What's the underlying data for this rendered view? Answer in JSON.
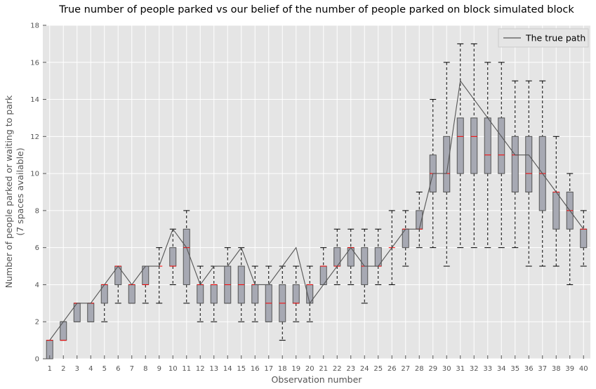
{
  "chart_data": {
    "type": "boxplot",
    "title": "True number of people parked vs our belief of the number of people parked on block simulated block",
    "xlabel": "Observation number",
    "ylabel_line1": "Number of people parked or waiting to park",
    "ylabel_line2": "(7 spaces available)",
    "ylim": [
      0,
      18
    ],
    "yticks": [
      0,
      2,
      4,
      6,
      8,
      10,
      12,
      14,
      16,
      18
    ],
    "categories": [
      "1",
      "2",
      "3",
      "4",
      "5",
      "6",
      "7",
      "8",
      "9",
      "10",
      "11",
      "12",
      "13",
      "14",
      "15",
      "16",
      "17",
      "18",
      "19",
      "20",
      "21",
      "22",
      "23",
      "24",
      "25",
      "26",
      "27",
      "28",
      "29",
      "30",
      "31",
      "32",
      "33",
      "34",
      "35",
      "36",
      "37",
      "38",
      "39",
      "40"
    ],
    "boxes": [
      {
        "whislo": 0,
        "q1": 0,
        "med": 1,
        "q3": 1,
        "whishi": 1
      },
      {
        "whislo": 1,
        "q1": 1,
        "med": 1,
        "q3": 2,
        "whishi": 2
      },
      {
        "whislo": 2,
        "q1": 2,
        "med": 3,
        "q3": 3,
        "whishi": 3
      },
      {
        "whislo": 2,
        "q1": 2,
        "med": 3,
        "q3": 3,
        "whishi": 3
      },
      {
        "whislo": 2,
        "q1": 3,
        "med": 4,
        "q3": 4,
        "whishi": 4
      },
      {
        "whislo": 3,
        "q1": 4,
        "med": 5,
        "q3": 5,
        "whishi": 5
      },
      {
        "whislo": 3,
        "q1": 3,
        "med": 4,
        "q3": 4,
        "whishi": 4
      },
      {
        "whislo": 3,
        "q1": 4,
        "med": 4,
        "q3": 5,
        "whishi": 5
      },
      {
        "whislo": 3,
        "q1": 5,
        "med": 5,
        "q3": 5,
        "whishi": 6
      },
      {
        "whislo": 4,
        "q1": 5,
        "med": 5,
        "q3": 6,
        "whishi": 7
      },
      {
        "whislo": 3,
        "q1": 4,
        "med": 6,
        "q3": 7,
        "whishi": 8
      },
      {
        "whislo": 2,
        "q1": 3,
        "med": 4,
        "q3": 4,
        "whishi": 5
      },
      {
        "whislo": 2,
        "q1": 3,
        "med": 4,
        "q3": 4,
        "whishi": 5
      },
      {
        "whislo": 3,
        "q1": 3,
        "med": 4,
        "q3": 5,
        "whishi": 6
      },
      {
        "whislo": 2,
        "q1": 3,
        "med": 4,
        "q3": 5,
        "whishi": 6
      },
      {
        "whislo": 2,
        "q1": 3,
        "med": 4,
        "q3": 4,
        "whishi": 5
      },
      {
        "whislo": 2,
        "q1": 2,
        "med": 3,
        "q3": 4,
        "whishi": 5
      },
      {
        "whislo": 1,
        "q1": 2,
        "med": 3,
        "q3": 4,
        "whishi": 5
      },
      {
        "whislo": 2,
        "q1": 3,
        "med": 3,
        "q3": 4,
        "whishi": 5
      },
      {
        "whislo": 2,
        "q1": 3,
        "med": 4,
        "q3": 4,
        "whishi": 5
      },
      {
        "whislo": 4,
        "q1": 4,
        "med": 5,
        "q3": 5,
        "whishi": 6
      },
      {
        "whislo": 4,
        "q1": 5,
        "med": 5,
        "q3": 6,
        "whishi": 7
      },
      {
        "whislo": 4,
        "q1": 5,
        "med": 6,
        "q3": 6,
        "whishi": 7
      },
      {
        "whislo": 3,
        "q1": 4,
        "med": 5,
        "q3": 6,
        "whishi": 7
      },
      {
        "whislo": 4,
        "q1": 5,
        "med": 5,
        "q3": 6,
        "whishi": 7
      },
      {
        "whislo": 4,
        "q1": 6,
        "med": 6,
        "q3": 6,
        "whishi": 8
      },
      {
        "whislo": 5,
        "q1": 6,
        "med": 7,
        "q3": 7,
        "whishi": 8
      },
      {
        "whislo": 6,
        "q1": 7,
        "med": 7,
        "q3": 8,
        "whishi": 9
      },
      {
        "whislo": 6,
        "q1": 9,
        "med": 10,
        "q3": 11,
        "whishi": 14
      },
      {
        "whislo": 5,
        "q1": 9,
        "med": 10,
        "q3": 12,
        "whishi": 16
      },
      {
        "whislo": 6,
        "q1": 10,
        "med": 12,
        "q3": 13,
        "whishi": 17
      },
      {
        "whislo": 6,
        "q1": 10,
        "med": 12,
        "q3": 13,
        "whishi": 17
      },
      {
        "whislo": 6,
        "q1": 10,
        "med": 11,
        "q3": 13,
        "whishi": 16
      },
      {
        "whislo": 6,
        "q1": 10,
        "med": 11,
        "q3": 13,
        "whishi": 16
      },
      {
        "whislo": 6,
        "q1": 9,
        "med": 11,
        "q3": 12,
        "whishi": 15
      },
      {
        "whislo": 5,
        "q1": 9,
        "med": 10,
        "q3": 12,
        "whishi": 15
      },
      {
        "whislo": 5,
        "q1": 8,
        "med": 10,
        "q3": 12,
        "whishi": 15
      },
      {
        "whislo": 5,
        "q1": 7,
        "med": 9,
        "q3": 9,
        "whishi": 12
      },
      {
        "whislo": 4,
        "q1": 7,
        "med": 8,
        "q3": 9,
        "whishi": 10
      },
      {
        "whislo": 5,
        "q1": 6,
        "med": 7,
        "q3": 7,
        "whishi": 8
      }
    ],
    "series": [
      {
        "name": "The true path",
        "values": [
          1,
          2,
          3,
          3,
          4,
          5,
          4,
          5,
          5,
          7,
          6,
          4,
          5,
          5,
          6,
          4,
          4,
          5,
          6,
          3,
          4,
          5,
          6,
          5,
          5,
          6,
          7,
          7,
          10,
          10,
          15,
          14,
          13,
          12,
          11,
          11,
          10,
          9,
          8,
          7
        ]
      }
    ],
    "legend_position": "top-right",
    "grid": true,
    "colors": {
      "plot_background": "#e5e5e5",
      "grid": "#ffffff",
      "box_fill": "#a7a9b3",
      "box_edge": "#555555",
      "median": "#ff0000",
      "whisker": "#000000",
      "true_path": "#555555"
    }
  }
}
